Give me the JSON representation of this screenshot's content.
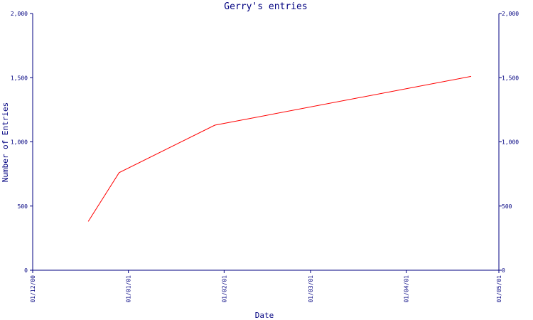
{
  "chart_data": {
    "type": "line",
    "title": "Gerry's entries",
    "xlabel": "Date",
    "ylabel": "Number of Entries",
    "x_ticks": [
      "01/12/00",
      "01/01/01",
      "01/02/01",
      "01/03/01",
      "01/04/01",
      "01/05/01"
    ],
    "y_ticks": [
      "0",
      "500",
      "1,000",
      "1,500",
      "2,000"
    ],
    "xlim": [
      "01/12/00",
      "01/05/01"
    ],
    "ylim": [
      0,
      2000
    ],
    "grid": false,
    "series": [
      {
        "color": "#ff0000",
        "x": [
          "19/12/00",
          "29/12/00",
          "29/01/01",
          "22/04/01"
        ],
        "y": [
          380,
          760,
          1130,
          1510
        ]
      }
    ]
  },
  "colors": {
    "axis": "#000080",
    "text": "#000080",
    "line": "#ff0000",
    "background": "#ffffff"
  }
}
